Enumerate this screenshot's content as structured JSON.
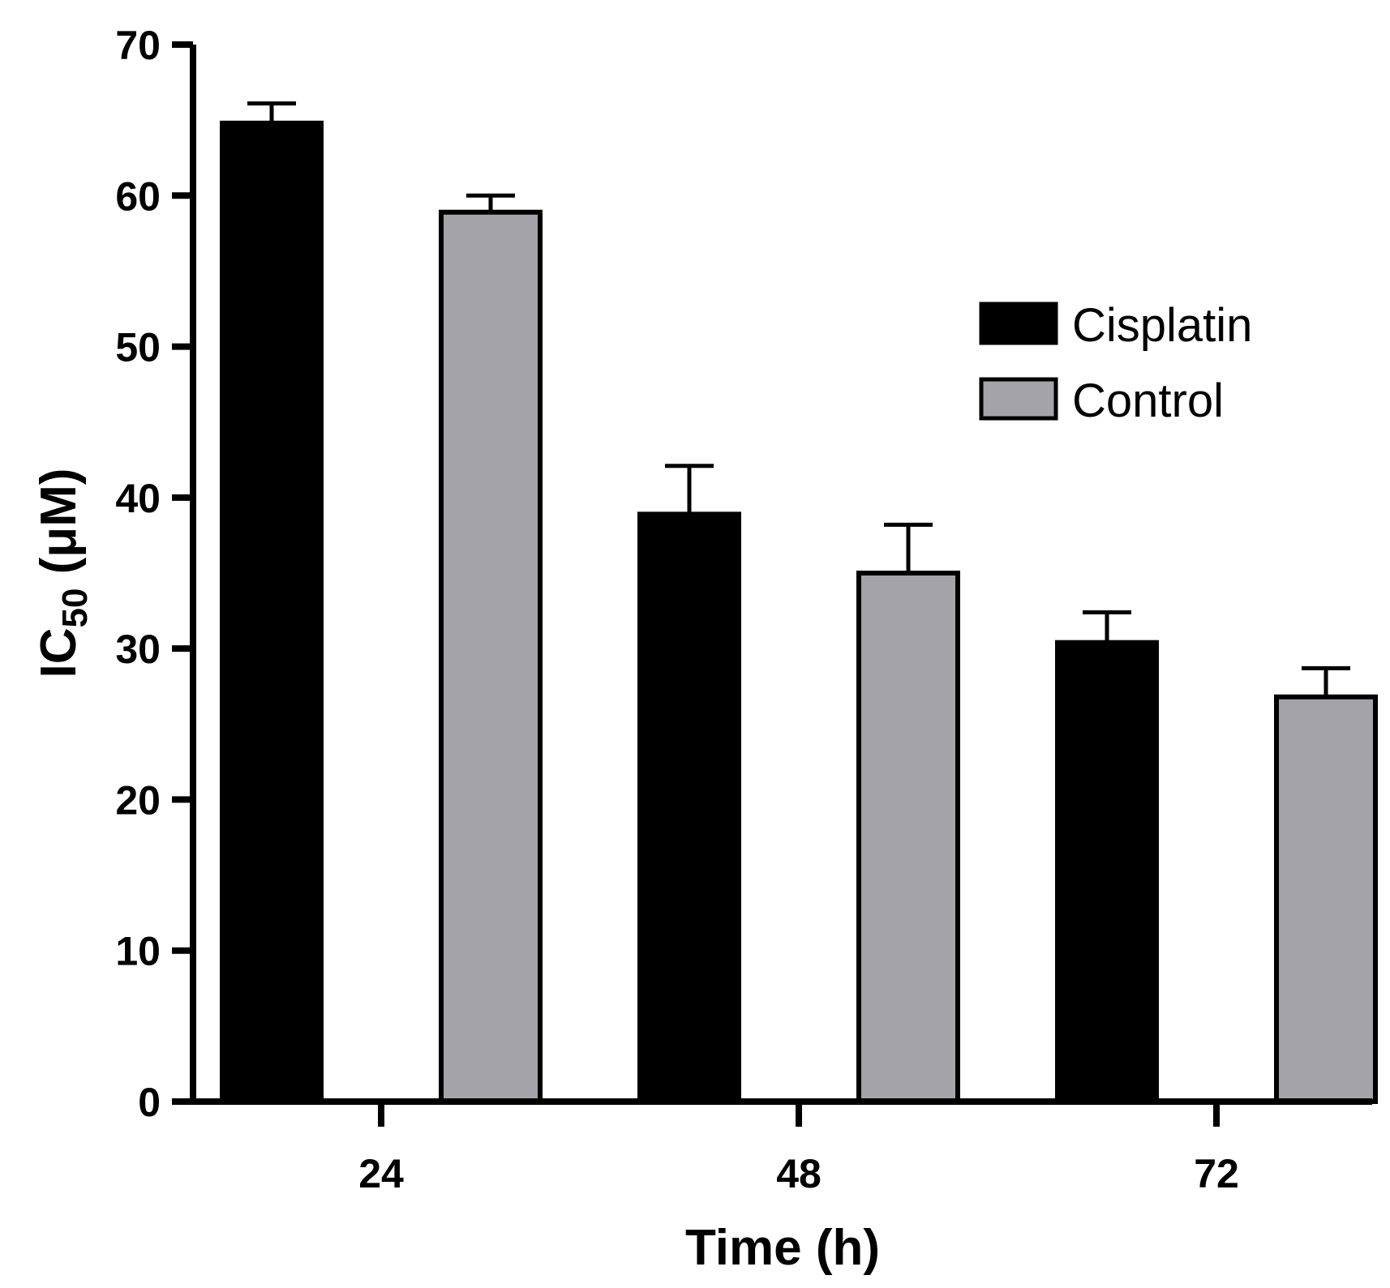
{
  "chart_data": {
    "type": "bar",
    "categories": [
      "24",
      "48",
      "72"
    ],
    "series": [
      {
        "name": "Cisplatin",
        "color": "#000000",
        "values": [
          64.8,
          38.9,
          30.4
        ],
        "errors": [
          1.3,
          3.2,
          2.0
        ]
      },
      {
        "name": "Control",
        "color": "#a4a3a8",
        "values": [
          58.9,
          35.0,
          26.8
        ],
        "errors": [
          1.1,
          3.2,
          1.9
        ]
      }
    ],
    "xlabel": "Time (h)",
    "ylabel": {
      "main": "IC",
      "subscript": "50",
      "unit": " (μM)"
    },
    "ylim": [
      0,
      70
    ],
    "yticks": [
      0,
      10,
      20,
      30,
      40,
      50,
      60,
      70
    ],
    "grid": false,
    "legend_position": "top-right"
  }
}
